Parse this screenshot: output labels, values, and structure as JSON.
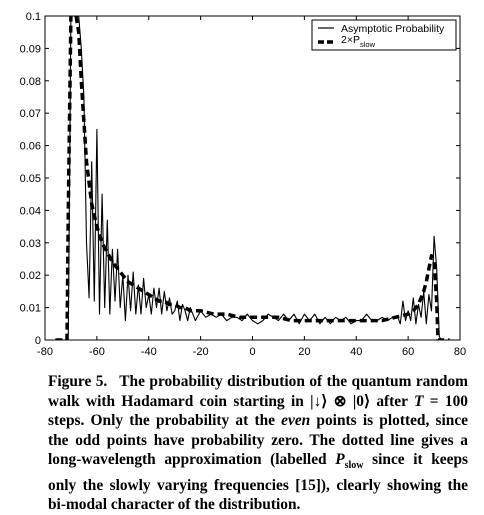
{
  "chart_data": {
    "type": "line",
    "title": "",
    "xlabel": "",
    "ylabel": "",
    "xlim": [
      -80,
      80
    ],
    "ylim": [
      0,
      0.1
    ],
    "xticks": [
      -80,
      -60,
      -40,
      -20,
      0,
      20,
      40,
      60,
      80
    ],
    "yticks": [
      0,
      0.01,
      0.02,
      0.03,
      0.04,
      0.05,
      0.06,
      0.07,
      0.08,
      0.09,
      0.1
    ],
    "xtick_labels": [
      "-80",
      "-60",
      "-40",
      "-20",
      "0",
      "20",
      "40",
      "60",
      "80"
    ],
    "ytick_labels": [
      "0",
      "0.01",
      "0.02",
      "0.03",
      "0.04",
      "0.05",
      "0.06",
      "0.07",
      "0.08",
      "0.09",
      "0.1"
    ],
    "grid": false,
    "legend_position": "top-right",
    "series": [
      {
        "name": "Asymptotic Probability",
        "style": "solid",
        "color": "#000000",
        "x": [
          -76,
          -72,
          -71,
          -70,
          -69,
          -68,
          -67,
          -66,
          -65,
          -64,
          -63,
          -62,
          -61,
          -60,
          -59,
          -58,
          -57,
          -56,
          -55,
          -54,
          -53,
          -52,
          -51,
          -50,
          -49,
          -48,
          -47,
          -46,
          -45,
          -44,
          -43,
          -42,
          -41,
          -40,
          -39,
          -38,
          -37,
          -36,
          -35,
          -34,
          -33,
          -32,
          -31,
          -30,
          -29,
          -28,
          -27,
          -26,
          -25,
          -24,
          -22,
          -20,
          -18,
          -16,
          -14,
          -12,
          -10,
          -8,
          -6,
          -4,
          -2,
          0,
          2,
          4,
          6,
          8,
          10,
          12,
          14,
          16,
          18,
          20,
          22,
          24,
          26,
          28,
          30,
          32,
          34,
          36,
          38,
          40,
          42,
          44,
          46,
          48,
          50,
          52,
          54,
          56,
          57,
          58,
          59,
          60,
          61,
          62,
          63,
          64,
          65,
          66,
          67,
          68,
          69,
          70,
          71,
          72,
          73,
          76
        ],
        "y": [
          0,
          0,
          0.002,
          0.1,
          0.1,
          0.1,
          0.1,
          0.09,
          0.075,
          0.03,
          0.013,
          0.055,
          0.012,
          0.065,
          0.008,
          0.045,
          0.01,
          0.037,
          0.008,
          0.028,
          0.012,
          0.028,
          0.01,
          0.02,
          0.006,
          0.02,
          0.009,
          0.021,
          0.008,
          0.017,
          0.008,
          0.019,
          0.01,
          0.014,
          0.008,
          0.016,
          0.01,
          0.016,
          0.008,
          0.015,
          0.009,
          0.013,
          0.008,
          0.009,
          0.012,
          0.006,
          0.011,
          0.009,
          0.006,
          0.01,
          0.006,
          0.009,
          0.007,
          0.008,
          0.007,
          0.008,
          0.006,
          0.007,
          0.007,
          0.006,
          0.008,
          0.006,
          0.005,
          0.006,
          0.008,
          0.007,
          0.006,
          0.008,
          0.006,
          0.008,
          0.005,
          0.008,
          0.006,
          0.008,
          0.005,
          0.007,
          0.005,
          0.007,
          0.006,
          0.007,
          0.005,
          0.006,
          0.006,
          0.008,
          0.006,
          0.006,
          0.007,
          0.006,
          0.007,
          0.007,
          0.005,
          0.012,
          0.006,
          0.009,
          0.006,
          0.013,
          0.005,
          0.011,
          0.007,
          0.015,
          0.005,
          0.014,
          0.009,
          0.032,
          0.022,
          0.001,
          0,
          0
        ]
      },
      {
        "name": "2×P",
        "name_sub": "slow",
        "style": "dashed",
        "color": "#000000",
        "x": [
          -76,
          -71.5,
          -71,
          -70,
          -69,
          -68,
          -67,
          -66,
          -64,
          -62,
          -60,
          -58,
          -56,
          -54,
          -52,
          -50,
          -48,
          -46,
          -44,
          -42,
          -40,
          -38,
          -36,
          -34,
          -32,
          -30,
          -28,
          -26,
          -24,
          -22,
          -20,
          -15,
          -10,
          -5,
          0,
          5,
          10,
          15,
          20,
          25,
          30,
          35,
          40,
          45,
          50,
          55,
          60,
          62,
          64,
          66,
          67,
          68,
          69,
          70,
          71,
          71.5,
          76
        ],
        "y": [
          0,
          0,
          0.04,
          0.1,
          0.1,
          0.1,
          0.095,
          0.08,
          0.055,
          0.042,
          0.035,
          0.03,
          0.027,
          0.024,
          0.022,
          0.02,
          0.018,
          0.017,
          0.016,
          0.015,
          0.014,
          0.013,
          0.012,
          0.012,
          0.011,
          0.011,
          0.01,
          0.01,
          0.009,
          0.009,
          0.009,
          0.008,
          0.008,
          0.007,
          0.007,
          0.007,
          0.007,
          0.006,
          0.006,
          0.006,
          0.006,
          0.006,
          0.006,
          0.006,
          0.006,
          0.007,
          0.008,
          0.009,
          0.011,
          0.015,
          0.018,
          0.022,
          0.026,
          0.024,
          0.012,
          0,
          0
        ]
      }
    ]
  },
  "caption": {
    "label": "Figure 5.",
    "text_1": "The probability distribution of the quantum random walk with Hadamard coin starting in |↓⟩ ⊗ |0⟩ after ",
    "T": "T",
    "text_2": " = 100 steps. Only the probability at the ",
    "even": "even",
    "text_3": " points is plotted, since the odd points have probability zero. The dotted line gives a long-wavelength approximation (labelled ",
    "P": "P",
    "P_sub": "slow",
    "text_4": " since it keeps only the slowly varying frequencies [15]), clearly showing the bi-modal character of the distribution."
  }
}
